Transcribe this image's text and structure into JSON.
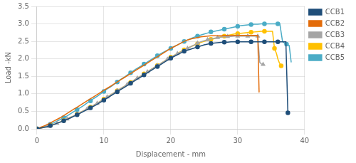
{
  "chart_data": {
    "type": "line",
    "xlabel": "Displacement - mm",
    "ylabel": "Load -kN",
    "xlim": [
      0,
      40
    ],
    "ylim": [
      0,
      3.5
    ],
    "xticks": [
      0,
      10,
      20,
      30,
      40
    ],
    "yticks": [
      {
        "value": 0,
        "label": "0.0"
      },
      0.5,
      {
        "value": 1.0,
        "label": "1.0"
      },
      1.5,
      {
        "value": 2.0,
        "label": "2.0"
      },
      2.5,
      {
        "value": 3.0,
        "label": "3.0"
      },
      3.5
    ],
    "grid": true,
    "legend": "right",
    "series": [
      {
        "name": "CCB1",
        "color": "#1F4E79",
        "marker": "circle",
        "x": [
          0,
          0.5,
          1,
          1.5,
          2,
          2.5,
          3,
          3.5,
          4,
          4.5,
          5,
          5.5,
          6,
          6.5,
          7,
          7.5,
          8,
          8.5,
          9,
          9.5,
          10,
          10.5,
          11,
          11.5,
          12,
          12.5,
          13,
          13.5,
          14,
          14.5,
          15,
          15.5,
          16,
          16.5,
          17,
          17.5,
          18,
          18.5,
          19,
          19.5,
          20,
          20.5,
          21,
          21.5,
          22,
          22.5,
          23,
          23.5,
          24,
          24.5,
          25,
          25.5,
          26,
          26.5,
          27,
          27.5,
          28,
          28.5,
          29,
          29.5,
          30,
          30.5,
          31,
          31.5,
          32,
          32.5,
          33,
          33.5,
          34,
          34.5,
          35,
          35.5,
          36,
          36.5,
          37,
          37.2,
          37.5
        ],
        "values": [
          0,
          0.02,
          0.04,
          0.06,
          0.09,
          0.12,
          0.16,
          0.19,
          0.23,
          0.27,
          0.31,
          0.36,
          0.4,
          0.45,
          0.5,
          0.55,
          0.6,
          0.65,
          0.7,
          0.76,
          0.82,
          0.88,
          0.94,
          1.0,
          1.06,
          1.12,
          1.18,
          1.24,
          1.3,
          1.36,
          1.42,
          1.48,
          1.54,
          1.6,
          1.66,
          1.72,
          1.78,
          1.84,
          1.9,
          1.96,
          2.02,
          2.07,
          2.12,
          2.17,
          2.22,
          2.25,
          2.28,
          2.31,
          2.34,
          2.37,
          2.4,
          2.42,
          2.44,
          2.45,
          2.46,
          2.47,
          2.48,
          2.48,
          2.49,
          2.49,
          2.49,
          2.49,
          2.49,
          2.49,
          2.49,
          2.49,
          2.49,
          2.49,
          2.49,
          2.49,
          2.49,
          2.49,
          2.49,
          2.49,
          2.49,
          2.49,
          0.46
        ]
      },
      {
        "name": "CCB2",
        "color": "#E36C0A",
        "marker": "none",
        "x": [
          0,
          0.5,
          1,
          1.5,
          2,
          2.5,
          3,
          3.5,
          4,
          4.5,
          5,
          5.5,
          6,
          6.5,
          7,
          7.5,
          8,
          8.5,
          9,
          9.5,
          10,
          10.5,
          11,
          11.5,
          12,
          12.5,
          13,
          13.5,
          14,
          14.5,
          15,
          15.5,
          16,
          16.5,
          17,
          17.5,
          18,
          18.5,
          19,
          19.5,
          20,
          20.5,
          21,
          21.5,
          22,
          22.5,
          23,
          23.5,
          24,
          24.5,
          25,
          25.5,
          26,
          26.5,
          27,
          27.5,
          28,
          28.5,
          29,
          29.5,
          30,
          30.5,
          31,
          31.5,
          32,
          32.5,
          33,
          33.2
        ],
        "values": [
          0,
          0.04,
          0.08,
          0.12,
          0.17,
          0.22,
          0.27,
          0.32,
          0.38,
          0.44,
          0.5,
          0.56,
          0.62,
          0.68,
          0.74,
          0.8,
          0.86,
          0.92,
          0.98,
          1.04,
          1.1,
          1.16,
          1.22,
          1.28,
          1.34,
          1.4,
          1.46,
          1.52,
          1.58,
          1.64,
          1.7,
          1.76,
          1.82,
          1.88,
          1.94,
          2.0,
          2.06,
          2.12,
          2.18,
          2.24,
          2.3,
          2.35,
          2.4,
          2.45,
          2.5,
          2.54,
          2.57,
          2.59,
          2.61,
          2.63,
          2.64,
          2.65,
          2.66,
          2.66,
          2.66,
          2.66,
          2.67,
          2.67,
          2.67,
          2.67,
          2.67,
          2.67,
          2.67,
          2.67,
          2.67,
          2.67,
          2.67,
          1.04
        ]
      },
      {
        "name": "CCB3",
        "color": "#A5A5A5",
        "marker": "triangle",
        "x": [
          0,
          0.5,
          1,
          1.5,
          2,
          2.5,
          3,
          3.5,
          4,
          4.5,
          5,
          5.5,
          6,
          6.5,
          7,
          7.5,
          8,
          8.5,
          9,
          9.5,
          10,
          10.5,
          11,
          11.5,
          12,
          12.5,
          13,
          13.5,
          14,
          14.5,
          15,
          15.5,
          16,
          16.5,
          17,
          17.5,
          18,
          18.5,
          19,
          19.5,
          20,
          20.5,
          21,
          21.5,
          22,
          22.5,
          23,
          23.5,
          24,
          24.5,
          25,
          25.5,
          26,
          26.5,
          27,
          27.5,
          28,
          28.5,
          29,
          29.5,
          30,
          30.5,
          31,
          31.5,
          32,
          32.5,
          33,
          33.3,
          33.5,
          33.8
        ],
        "values": [
          0,
          0.02,
          0.04,
          0.07,
          0.1,
          0.13,
          0.16,
          0.2,
          0.24,
          0.28,
          0.33,
          0.37,
          0.42,
          0.47,
          0.52,
          0.57,
          0.62,
          0.68,
          0.73,
          0.79,
          0.85,
          0.91,
          0.97,
          1.03,
          1.09,
          1.15,
          1.21,
          1.27,
          1.33,
          1.39,
          1.45,
          1.51,
          1.57,
          1.63,
          1.69,
          1.75,
          1.81,
          1.87,
          1.93,
          1.99,
          2.05,
          2.1,
          2.15,
          2.2,
          2.25,
          2.3,
          2.35,
          2.4,
          2.45,
          2.49,
          2.52,
          2.55,
          2.57,
          2.59,
          2.61,
          2.62,
          2.63,
          2.64,
          2.64,
          2.65,
          2.65,
          2.65,
          2.65,
          2.65,
          2.65,
          2.65,
          2.65,
          1.9,
          1.86,
          1.84
        ]
      },
      {
        "name": "CCB4",
        "color": "#FFC000",
        "marker": "diamond",
        "x": [
          0,
          0.5,
          1,
          1.5,
          2,
          2.5,
          3,
          3.5,
          4,
          4.5,
          5,
          5.5,
          6,
          6.5,
          7,
          7.5,
          8,
          8.5,
          9,
          9.5,
          10,
          10.5,
          11,
          11.5,
          12,
          12.5,
          13,
          13.5,
          14,
          14.5,
          15,
          15.5,
          16,
          16.5,
          17,
          17.5,
          18,
          18.5,
          19,
          19.5,
          20,
          20.5,
          21,
          21.5,
          22,
          22.5,
          23,
          23.5,
          24,
          24.5,
          25,
          25.5,
          26,
          26.5,
          27,
          27.5,
          28,
          28.5,
          29,
          29.5,
          30,
          30.5,
          31,
          31.5,
          32,
          32.5,
          33,
          33.5,
          34,
          34.5,
          35,
          35.2,
          35.5,
          35.8,
          36,
          36.2,
          36.5
        ],
        "values": [
          0,
          0.02,
          0.04,
          0.07,
          0.1,
          0.13,
          0.16,
          0.2,
          0.24,
          0.28,
          0.33,
          0.37,
          0.42,
          0.47,
          0.52,
          0.57,
          0.62,
          0.68,
          0.73,
          0.79,
          0.85,
          0.91,
          0.97,
          1.03,
          1.09,
          1.15,
          1.21,
          1.27,
          1.33,
          1.39,
          1.45,
          1.51,
          1.57,
          1.63,
          1.69,
          1.75,
          1.81,
          1.87,
          1.93,
          1.99,
          2.05,
          2.1,
          2.16,
          2.21,
          2.26,
          2.31,
          2.35,
          2.39,
          2.43,
          2.47,
          2.5,
          2.53,
          2.56,
          2.58,
          2.61,
          2.63,
          2.65,
          2.67,
          2.69,
          2.71,
          2.72,
          2.73,
          2.74,
          2.75,
          2.76,
          2.77,
          2.78,
          2.79,
          2.79,
          2.79,
          2.79,
          2.79,
          2.3,
          2.15,
          2.0,
          1.9,
          1.8
        ]
      },
      {
        "name": "CCB5",
        "color": "#4BACC6",
        "marker": "square",
        "x": [
          0,
          0.5,
          1,
          1.5,
          2,
          2.5,
          3,
          3.5,
          4,
          4.5,
          5,
          5.5,
          6,
          6.5,
          7,
          7.5,
          8,
          8.5,
          9,
          9.5,
          10,
          10.5,
          11,
          11.5,
          12,
          12.5,
          13,
          13.5,
          14,
          14.5,
          15,
          15.5,
          16,
          16.5,
          17,
          17.5,
          18,
          18.5,
          19,
          19.5,
          20,
          20.5,
          21,
          21.5,
          22,
          22.5,
          23,
          23.5,
          24,
          24.5,
          25,
          25.5,
          26,
          26.5,
          27,
          27.5,
          28,
          28.5,
          29,
          29.5,
          30,
          30.5,
          31,
          31.5,
          32,
          32.5,
          33,
          33.5,
          34,
          34.5,
          35,
          35.5,
          36,
          36.3,
          36.7,
          37,
          37.3,
          37.7,
          38
        ],
        "values": [
          0,
          0.03,
          0.06,
          0.09,
          0.13,
          0.17,
          0.22,
          0.27,
          0.32,
          0.37,
          0.43,
          0.49,
          0.55,
          0.61,
          0.67,
          0.74,
          0.8,
          0.87,
          0.93,
          1.0,
          1.07,
          1.14,
          1.2,
          1.27,
          1.34,
          1.41,
          1.47,
          1.54,
          1.6,
          1.67,
          1.73,
          1.79,
          1.85,
          1.91,
          1.97,
          2.03,
          2.09,
          2.15,
          2.2,
          2.25,
          2.3,
          2.35,
          2.4,
          2.45,
          2.5,
          2.54,
          2.58,
          2.62,
          2.65,
          2.68,
          2.71,
          2.74,
          2.77,
          2.79,
          2.81,
          2.83,
          2.85,
          2.87,
          2.89,
          2.91,
          2.93,
          2.95,
          2.96,
          2.97,
          2.98,
          2.99,
          2.99,
          3.0,
          3.0,
          3.0,
          3.0,
          3.0,
          3.0,
          3.0,
          2.5,
          2.45,
          2.42,
          2.38,
          1.9
        ]
      }
    ]
  }
}
